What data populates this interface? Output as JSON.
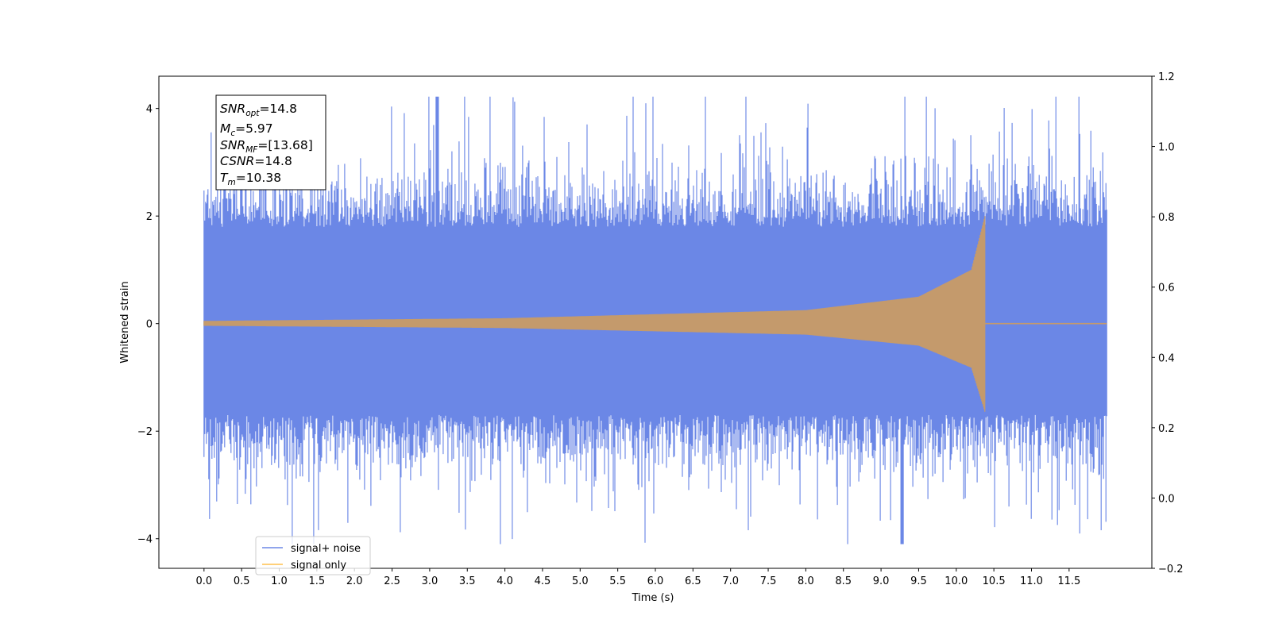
{
  "chart_data": {
    "type": "line",
    "title": "",
    "xlabel": "Time (s)",
    "ylabel": "Whitened strain",
    "xlim": [
      -0.6,
      12.6
    ],
    "ylim": [
      -4.55,
      4.6
    ],
    "y2lim": [
      -0.2,
      1.2
    ],
    "grid": false,
    "x_ticks": [
      "0.0",
      "0.5",
      "1.0",
      "1.5",
      "2.0",
      "2.5",
      "3.0",
      "3.5",
      "4.0",
      "4.5",
      "5.0",
      "5.5",
      "6.0",
      "6.5",
      "7.0",
      "7.5",
      "8.0",
      "8.5",
      "9.0",
      "9.5",
      "10.0",
      "10.5",
      "11.0",
      "11.5"
    ],
    "y_ticks": [
      "4",
      "2",
      "0",
      "−2",
      "−4"
    ],
    "y2_ticks": [
      "1.2",
      "1.0",
      "0.8",
      "0.6",
      "0.4",
      "0.2",
      "0.0",
      "−0.2"
    ],
    "annotation": {
      "lines": [
        {
          "base": "SNR",
          "sub": "opt",
          "rest": "=14.8"
        },
        {
          "base": "M",
          "sub": "c",
          "rest": "=5.97"
        },
        {
          "base": "SNR",
          "sub": "MF",
          "rest": "=[13.68]"
        },
        {
          "base": "CSNR",
          "sub": "",
          "rest": "=14.8"
        },
        {
          "base": "T",
          "sub": "m",
          "rest": "=10.38"
        }
      ]
    },
    "legend": {
      "placement": "lower-left",
      "entries": [
        {
          "label": "signal+ noise",
          "color": "#6b87e6"
        },
        {
          "label": "signal only",
          "color": "#ffc04d"
        }
      ]
    },
    "series": [
      {
        "name": "signal+ noise",
        "color": "#6b87e6",
        "x_range": [
          0.0,
          12.0
        ],
        "envelope": {
          "typical_band": [
            -1.7,
            1.8
          ],
          "peak_max": 4.22,
          "peak_max_t": 3.1,
          "peak_min": -4.1,
          "peak_min_t": 9.28
        }
      },
      {
        "name": "signal only",
        "color": "#c49a6c",
        "x_range": [
          0.0,
          12.0
        ],
        "merger_time": 10.38,
        "amplitude_profile": [
          {
            "t": 0.0,
            "a": 0.05
          },
          {
            "t": 4.0,
            "a": 0.1
          },
          {
            "t": 8.0,
            "a": 0.25
          },
          {
            "t": 9.5,
            "a": 0.5
          },
          {
            "t": 10.2,
            "a": 1.0
          },
          {
            "t": 10.38,
            "a": 2.0
          }
        ]
      }
    ]
  }
}
